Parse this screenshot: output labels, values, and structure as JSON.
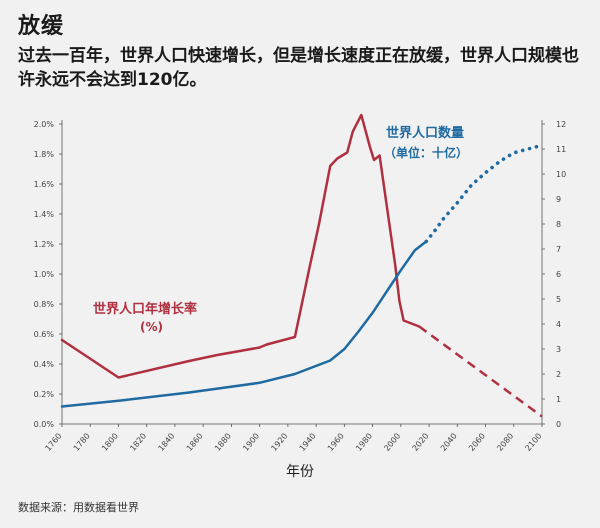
{
  "header": {
    "title": "放缓",
    "subtitle": "过去一百年，世界人口快速增长，但是增长速度正在放缓，世界人口规模也许永远不会达到120亿。"
  },
  "source": "数据来源：用数据看世界",
  "colors": {
    "growth": "#b03040",
    "population": "#1f6aa0",
    "background": "#f1f1f1"
  },
  "chart_data": {
    "type": "line",
    "xlabel": "年份",
    "x_ticks": [
      1760,
      1780,
      1800,
      1820,
      1840,
      1860,
      1880,
      1900,
      1920,
      1940,
      1960,
      1980,
      2000,
      2020,
      2040,
      2060,
      2080,
      2100
    ],
    "y_left": {
      "ticks": [
        "0.0%",
        "0.2%",
        "0.4%",
        "0.6%",
        "0.8%",
        "1.0%",
        "1.2%",
        "1.4%",
        "1.6%",
        "1.8%",
        "2.0%"
      ],
      "range": [
        0,
        2.0
      ],
      "unit": "%"
    },
    "y_right": {
      "ticks": [
        "0",
        "1",
        "2",
        "3",
        "4",
        "5",
        "6",
        "7",
        "8",
        "9",
        "10",
        "11",
        "12"
      ],
      "range": [
        0,
        12
      ],
      "unit": "十亿"
    },
    "annotations": {
      "growth_label": "世界人口年增长率",
      "growth_unit": "(%)",
      "pop_label": "世界人口数量",
      "pop_unit": "（单位：十亿）"
    },
    "series": [
      {
        "name": "世界人口年增长率",
        "axis": "left",
        "style": "solid",
        "x": [
          1760,
          1800,
          1850,
          1870,
          1900,
          1905,
          1925,
          1935,
          1942,
          1950,
          1955,
          1962,
          1966,
          1972,
          1978,
          1981,
          1985,
          1996,
          1999,
          2002,
          2013
        ],
        "y": [
          0.56,
          0.31,
          0.42,
          0.46,
          0.51,
          0.53,
          0.58,
          1.03,
          1.33,
          1.72,
          1.77,
          1.81,
          1.95,
          2.06,
          1.85,
          1.76,
          1.79,
          1.06,
          0.82,
          0.69,
          0.65
        ]
      },
      {
        "name": "世界人口年增长率 (预测)",
        "axis": "left",
        "style": "dashed",
        "x": [
          2013,
          2100
        ],
        "y": [
          0.65,
          0.05
        ]
      },
      {
        "name": "世界人口数量",
        "axis": "right",
        "style": "solid",
        "x": [
          1760,
          1800,
          1850,
          1900,
          1925,
          1950,
          1960,
          1970,
          1980,
          1990,
          2000,
          2010,
          2018
        ],
        "y": [
          0.7,
          0.93,
          1.26,
          1.65,
          2.0,
          2.54,
          3.0,
          3.7,
          4.45,
          5.3,
          6.15,
          6.95,
          7.3
        ]
      },
      {
        "name": "世界人口数量 (预测)",
        "axis": "right",
        "style": "dotted",
        "x": [
          2018,
          2025,
          2030,
          2040,
          2050,
          2060,
          2070,
          2080,
          2090,
          2100
        ],
        "y": [
          7.3,
          7.8,
          8.2,
          8.85,
          9.55,
          10.05,
          10.5,
          10.85,
          11.0,
          11.15
        ]
      }
    ]
  }
}
